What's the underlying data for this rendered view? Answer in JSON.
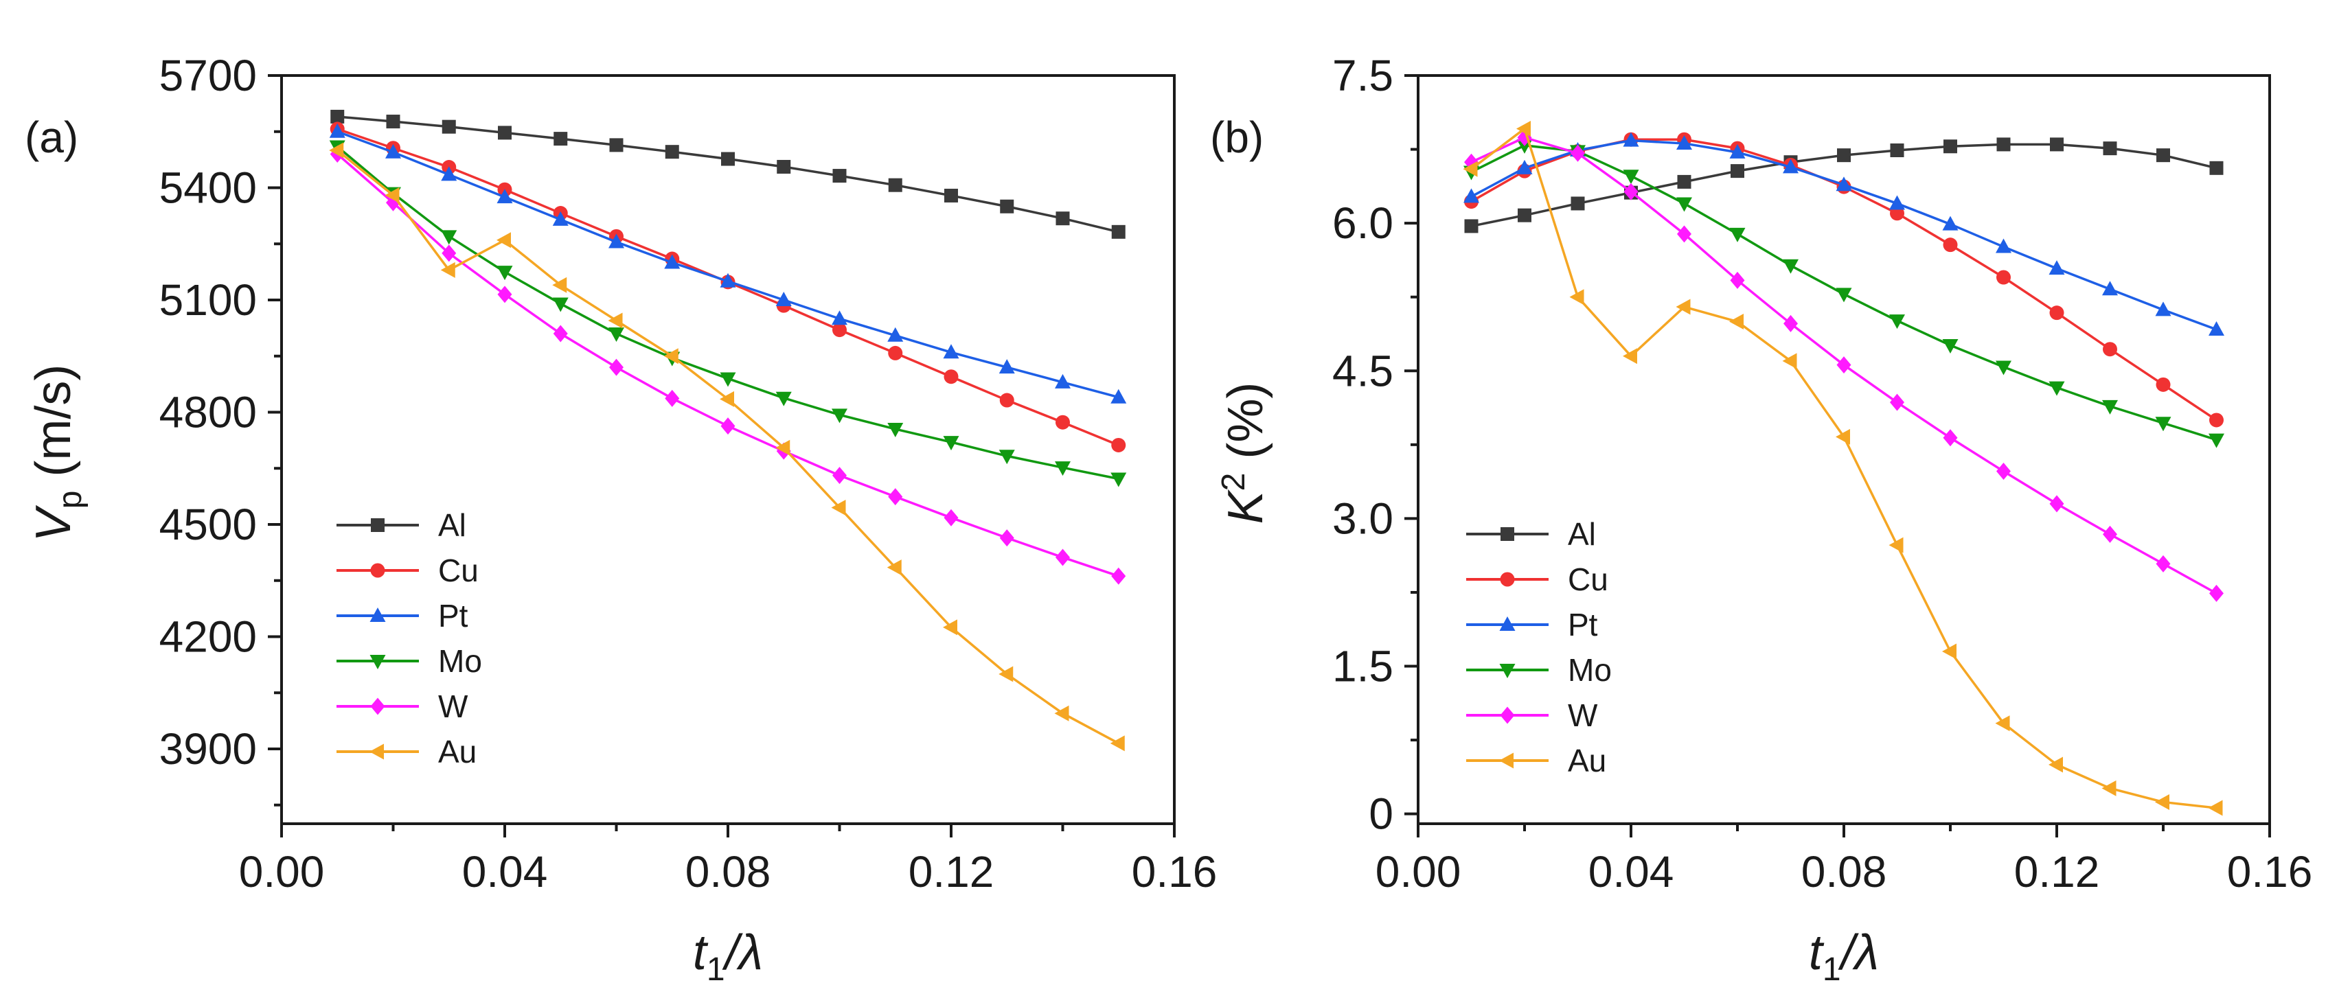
{
  "chart_data": [
    {
      "type": "line",
      "panel_label": "(a)",
      "xlabel": "t1/λ",
      "ylabel": "Vp (m/s)",
      "ylabel_parts": {
        "symbol": "V",
        "subscript": "p",
        "unit": " (m/s)"
      },
      "xlabel_parts": {
        "symbol": "t",
        "subscript": "1",
        "rest": "/λ"
      },
      "xlim": [
        0,
        0.16
      ],
      "ylim": [
        3700,
        5700
      ],
      "x_ticks": [
        0.0,
        0.04,
        0.08,
        0.12,
        0.16
      ],
      "x_tick_labels": [
        "0.00",
        "0.04",
        "0.08",
        "0.12",
        "0.16"
      ],
      "y_ticks": [
        3900,
        4200,
        4500,
        4800,
        5100,
        5400,
        5700
      ],
      "y_tick_labels": [
        "3900",
        "4200",
        "4500",
        "4800",
        "5100",
        "5400",
        "5700"
      ],
      "legend_position": "lower-left",
      "x": [
        0.01,
        0.02,
        0.03,
        0.04,
        0.05,
        0.06,
        0.07,
        0.08,
        0.09,
        0.1,
        0.11,
        0.12,
        0.13,
        0.14,
        0.15
      ],
      "series": [
        {
          "name": "Al",
          "color": "#3a3a3a",
          "marker": "square",
          "values": [
            5590,
            5577,
            5563,
            5547,
            5531,
            5514,
            5496,
            5477,
            5456,
            5432,
            5407,
            5379,
            5350,
            5318,
            5282
          ]
        },
        {
          "name": "Cu",
          "color": "#f03232",
          "marker": "circle",
          "values": [
            5557,
            5506,
            5455,
            5395,
            5332,
            5270,
            5210,
            5148,
            5085,
            5020,
            4958,
            4895,
            4832,
            4773,
            4712
          ]
        },
        {
          "name": "Pt",
          "color": "#1e5fe6",
          "marker": "triangle-up",
          "values": [
            5550,
            5495,
            5435,
            5375,
            5315,
            5255,
            5200,
            5150,
            5100,
            5050,
            5005,
            4960,
            4920,
            4880,
            4840
          ]
        },
        {
          "name": "Mo",
          "color": "#119911",
          "marker": "triangle-down",
          "values": [
            5510,
            5385,
            5270,
            5175,
            5090,
            5010,
            4945,
            4890,
            4838,
            4793,
            4755,
            4720,
            4683,
            4652,
            4622
          ]
        },
        {
          "name": "W",
          "color": "#ff1aff",
          "marker": "diamond",
          "values": [
            5490,
            5360,
            5225,
            5115,
            5010,
            4920,
            4837,
            4763,
            4696,
            4631,
            4574,
            4518,
            4464,
            4412,
            4362
          ]
        },
        {
          "name": "Au",
          "color": "#f5a623",
          "marker": "triangle-left",
          "values": [
            5500,
            5380,
            5180,
            5260,
            5140,
            5045,
            4950,
            4835,
            4705,
            4545,
            4385,
            4225,
            4100,
            3995,
            3915
          ]
        }
      ]
    },
    {
      "type": "line",
      "panel_label": "(b)",
      "xlabel": "t1/λ",
      "ylabel": "K2 (%)",
      "ylabel_parts": {
        "symbol": "K",
        "superscript": "2",
        "unit": " (%)"
      },
      "xlabel_parts": {
        "symbol": "t",
        "subscript": "1",
        "rest": "/λ"
      },
      "xlim": [
        0,
        0.16
      ],
      "ylim": [
        -0.1,
        7.5
      ],
      "x_ticks": [
        0.0,
        0.04,
        0.08,
        0.12,
        0.16
      ],
      "x_tick_labels": [
        "0.00",
        "0.04",
        "0.08",
        "0.12",
        "0.16"
      ],
      "y_ticks": [
        0,
        1.5,
        3.0,
        4.5,
        6.0,
        7.5
      ],
      "y_tick_labels": [
        "0",
        "1.5",
        "3.0",
        "4.5",
        "6.0",
        "7.5"
      ],
      "legend_position": "lower-left",
      "x": [
        0.01,
        0.02,
        0.03,
        0.04,
        0.05,
        0.06,
        0.07,
        0.08,
        0.09,
        0.1,
        0.11,
        0.12,
        0.13,
        0.14,
        0.15
      ],
      "series": [
        {
          "name": "Al",
          "color": "#3a3a3a",
          "marker": "square",
          "values": [
            5.97,
            6.08,
            6.2,
            6.31,
            6.42,
            6.53,
            6.62,
            6.69,
            6.74,
            6.78,
            6.8,
            6.8,
            6.76,
            6.69,
            6.56
          ]
        },
        {
          "name": "Cu",
          "color": "#f03232",
          "marker": "circle",
          "values": [
            6.22,
            6.53,
            6.73,
            6.85,
            6.85,
            6.76,
            6.59,
            6.37,
            6.1,
            5.78,
            5.45,
            5.09,
            4.72,
            4.36,
            4.0
          ]
        },
        {
          "name": "Pt",
          "color": "#1e5fe6",
          "marker": "triangle-up",
          "values": [
            6.27,
            6.56,
            6.74,
            6.84,
            6.81,
            6.72,
            6.57,
            6.39,
            6.2,
            5.99,
            5.76,
            5.54,
            5.33,
            5.12,
            4.92
          ]
        },
        {
          "name": "Mo",
          "color": "#119911",
          "marker": "triangle-down",
          "values": [
            6.52,
            6.79,
            6.73,
            6.48,
            6.2,
            5.89,
            5.57,
            5.28,
            5.01,
            4.76,
            4.54,
            4.33,
            4.14,
            3.97,
            3.8
          ]
        },
        {
          "name": "W",
          "color": "#ff1aff",
          "marker": "diamond",
          "values": [
            6.62,
            6.87,
            6.71,
            6.32,
            5.89,
            5.42,
            4.98,
            4.56,
            4.18,
            3.82,
            3.48,
            3.15,
            2.84,
            2.54,
            2.24
          ]
        },
        {
          "name": "Au",
          "color": "#f5a623",
          "marker": "triangle-left",
          "values": [
            6.55,
            6.96,
            5.25,
            4.65,
            5.15,
            5.0,
            4.6,
            3.83,
            2.73,
            1.65,
            0.92,
            0.5,
            0.26,
            0.12,
            0.06
          ]
        }
      ]
    }
  ]
}
